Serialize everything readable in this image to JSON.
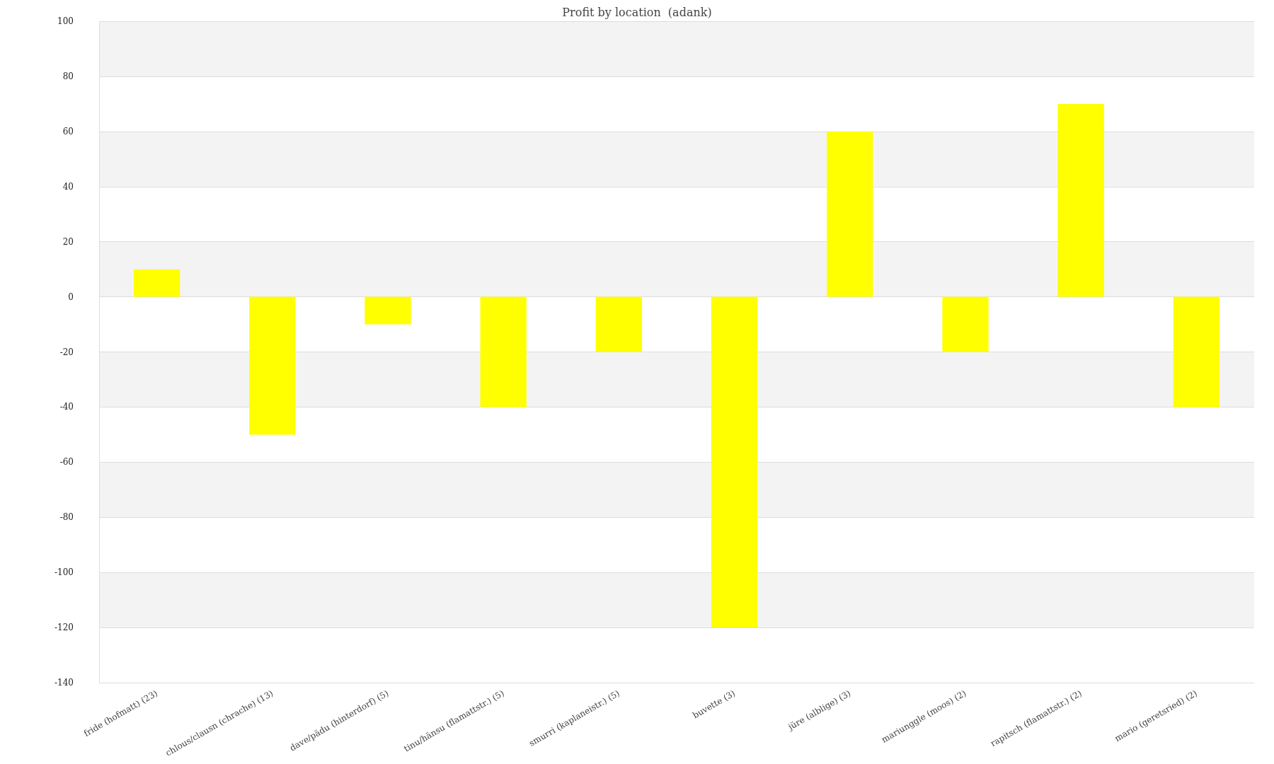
{
  "chart_data": {
    "type": "bar",
    "title": "Profit by location  (adank)",
    "categories": [
      "fride (hofmatt) (23)",
      "chlous/clausn (chrache) (13)",
      "dave/pädu (hinterdorf) (5)",
      "tinu/hänsu (flamattstr.) (5)",
      "smurri (kaplaneistr.) (5)",
      "buvette (3)",
      "jüre (alblige) (3)",
      "mariunggle (moos) (2)",
      "rapitsch (flamattstr.) (2)",
      "mario (geretsried) (2)"
    ],
    "values": [
      10,
      -50,
      -10,
      -40,
      -20,
      -120,
      60,
      -20,
      70,
      -40
    ],
    "color": "#ffff00",
    "ylim": [
      -140,
      100
    ],
    "yticks": [
      -140,
      -120,
      -100,
      -80,
      -60,
      -40,
      -20,
      0,
      20,
      40,
      60,
      80,
      100
    ],
    "grid": "y"
  }
}
